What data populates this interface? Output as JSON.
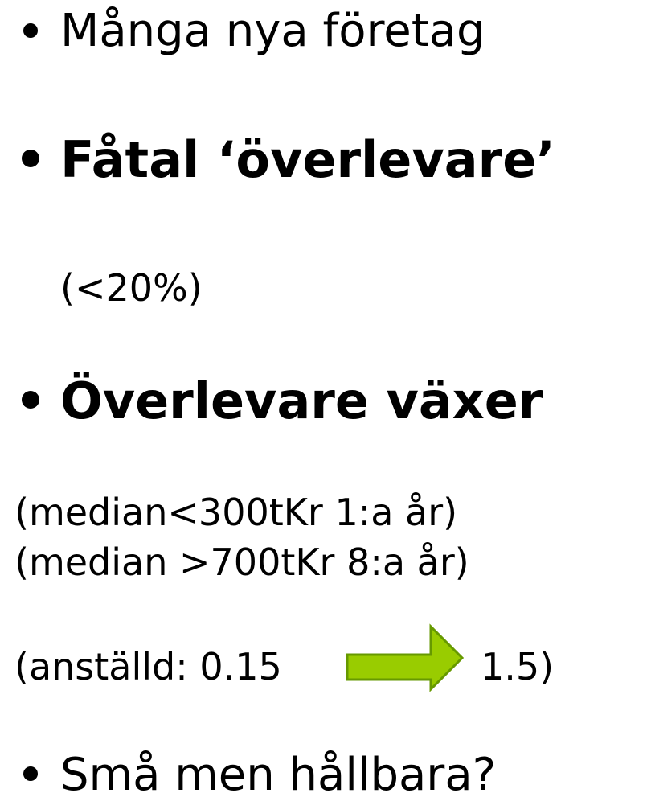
{
  "slide": {
    "points": [
      "Många nya företag",
      "Fåtal ‘överlevare’",
      "Överlevare växer",
      "Små men hållbara?"
    ],
    "notes": [
      "(<20%)",
      "(median<300tKr 1:a år)",
      "(median >700tKr 8:a år)"
    ],
    "employee_change": {
      "from": "(anställd: 0.15",
      "to": "1.5)"
    }
  }
}
